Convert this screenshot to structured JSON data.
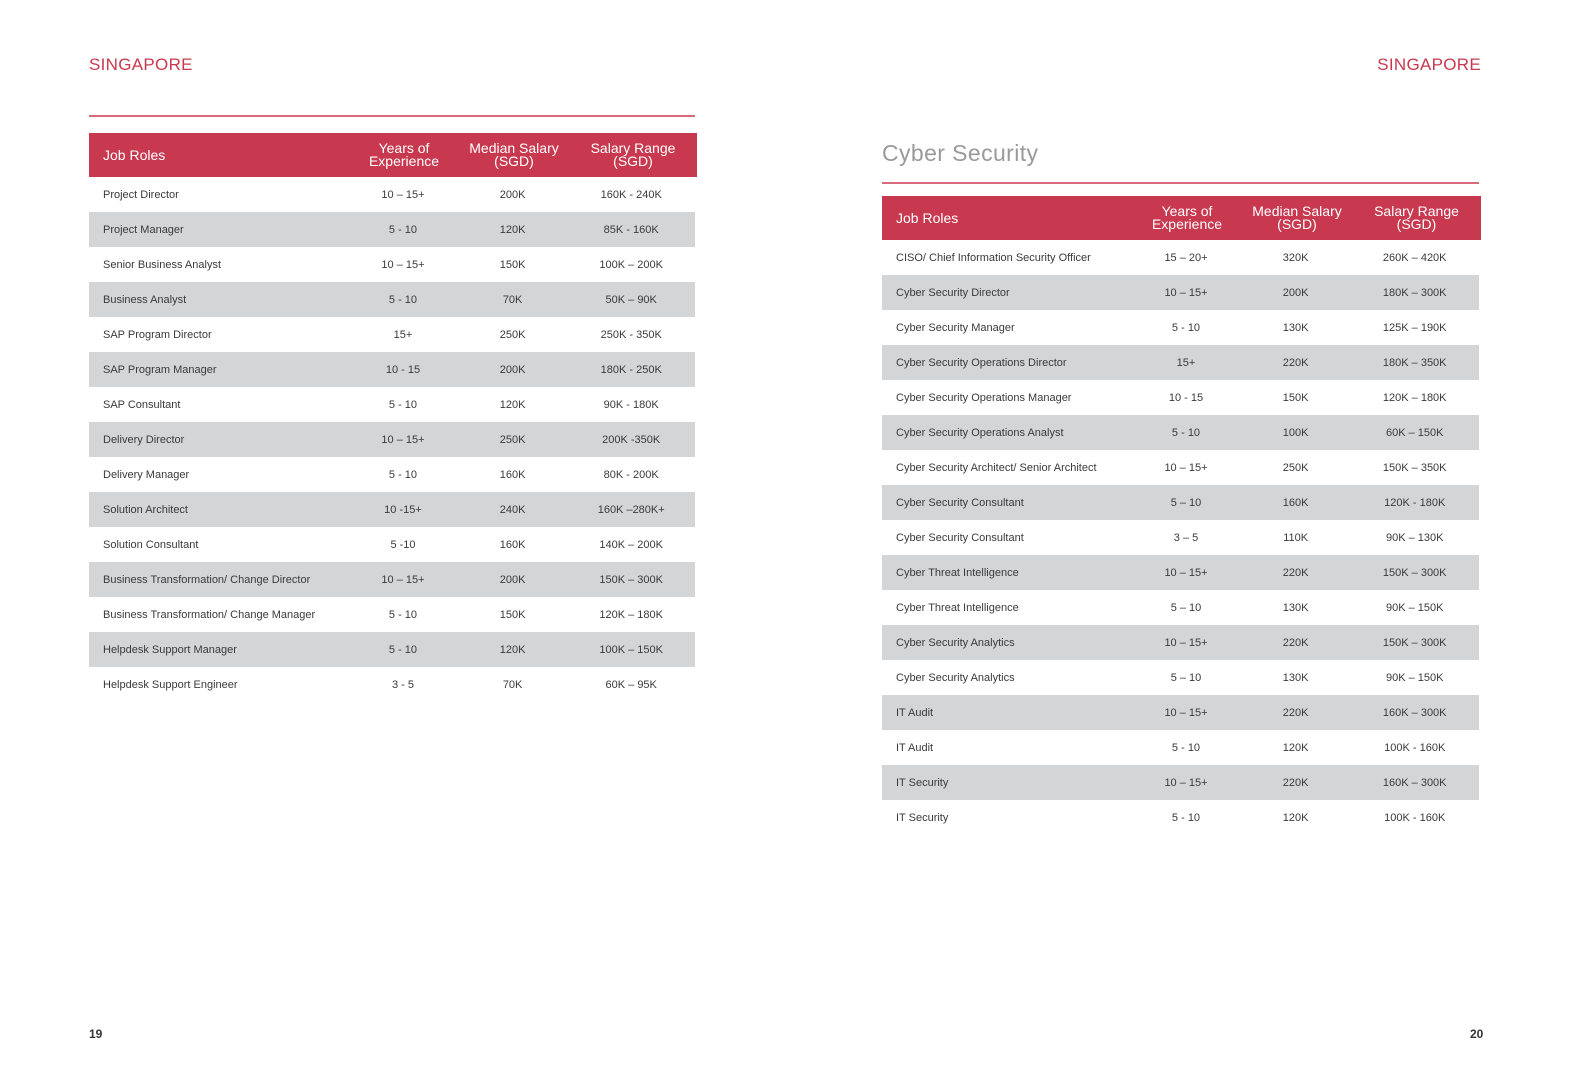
{
  "left_page": {
    "region": "SINGAPORE",
    "page_number": "19",
    "headers": {
      "role": "Job Roles",
      "experience": [
        "Years of",
        "Experience"
      ],
      "median": [
        "Median Salary",
        "(SGD)"
      ],
      "range": [
        "Salary Range",
        "(SGD)"
      ]
    },
    "rows": [
      {
        "role": "Project Director",
        "experience": "10 – 15+",
        "median": "200K",
        "range": "160K - 240K"
      },
      {
        "role": "Project Manager",
        "experience": "5 - 10",
        "median": "120K",
        "range": "85K - 160K"
      },
      {
        "role": "Senior Business Analyst",
        "experience": "10 – 15+",
        "median": "150K",
        "range": "100K – 200K"
      },
      {
        "role": "Business Analyst",
        "experience": "5 - 10",
        "median": "70K",
        "range": "50K – 90K"
      },
      {
        "role": "SAP Program Director",
        "experience": "15+",
        "median": "250K",
        "range": "250K - 350K"
      },
      {
        "role": "SAP Program Manager",
        "experience": "10 - 15",
        "median": "200K",
        "range": "180K - 250K"
      },
      {
        "role": "SAP Consultant",
        "experience": "5 - 10",
        "median": "120K",
        "range": "90K - 180K"
      },
      {
        "role": "Delivery Director",
        "experience": "10 – 15+",
        "median": "250K",
        "range": "200K -350K"
      },
      {
        "role": "Delivery Manager",
        "experience": "5 - 10",
        "median": "160K",
        "range": "80K - 200K"
      },
      {
        "role": "Solution Architect",
        "experience": "10 -15+",
        "median": "240K",
        "range": "160K –280K+"
      },
      {
        "role": "Solution Consultant",
        "experience": "5 -10",
        "median": "160K",
        "range": "140K – 200K"
      },
      {
        "role": "Business Transformation/ Change Director",
        "experience": "10 – 15+",
        "median": "200K",
        "range": "150K – 300K"
      },
      {
        "role": "Business Transformation/ Change Manager",
        "experience": "5 - 10",
        "median": "150K",
        "range": "120K – 180K"
      },
      {
        "role": "Helpdesk Support Manager",
        "experience": "5 - 10",
        "median": "120K",
        "range": "100K – 150K"
      },
      {
        "role": "Helpdesk Support Engineer",
        "experience": "3 - 5",
        "median": "70K",
        "range": "60K – 95K"
      }
    ]
  },
  "right_page": {
    "region": "SINGAPORE",
    "page_number": "20",
    "section_title": "Cyber Security",
    "headers": {
      "role": "Job Roles",
      "experience": [
        "Years of",
        "Experience"
      ],
      "median": [
        "Median Salary",
        "(SGD)"
      ],
      "range": [
        "Salary Range",
        "(SGD)"
      ]
    },
    "rows": [
      {
        "role": "CISO/ Chief Information Security Officer",
        "experience": "15 – 20+",
        "median": "320K",
        "range": "260K – 420K"
      },
      {
        "role": "Cyber Security Director",
        "experience": "10 – 15+",
        "median": "200K",
        "range": "180K – 300K"
      },
      {
        "role": "Cyber Security Manager",
        "experience": "5 - 10",
        "median": "130K",
        "range": "125K – 190K"
      },
      {
        "role": "Cyber Security Operations Director",
        "experience": "15+",
        "median": "220K",
        "range": "180K – 350K"
      },
      {
        "role": "Cyber Security Operations Manager",
        "experience": "10 - 15",
        "median": "150K",
        "range": "120K – 180K"
      },
      {
        "role": "Cyber Security Operations Analyst",
        "experience": "5 - 10",
        "median": "100K",
        "range": "60K – 150K"
      },
      {
        "role": "Cyber Security Architect/ Senior Architect",
        "experience": "10 – 15+",
        "median": "250K",
        "range": "150K – 350K"
      },
      {
        "role": "Cyber Security Consultant",
        "experience": "5 – 10",
        "median": "160K",
        "range": "120K - 180K"
      },
      {
        "role": "Cyber Security Consultant",
        "experience": "3 – 5",
        "median": "110K",
        "range": "90K – 130K"
      },
      {
        "role": "Cyber Threat Intelligence",
        "experience": "10 – 15+",
        "median": "220K",
        "range": "150K – 300K"
      },
      {
        "role": "Cyber Threat Intelligence",
        "experience": "5 – 10",
        "median": "130K",
        "range": "90K – 150K"
      },
      {
        "role": "Cyber Security Analytics",
        "experience": "10 – 15+",
        "median": "220K",
        "range": "150K – 300K"
      },
      {
        "role": "Cyber Security Analytics",
        "experience": "5 – 10",
        "median": "130K",
        "range": "90K – 150K"
      },
      {
        "role": "IT Audit",
        "experience": "10 – 15+",
        "median": "220K",
        "range": "160K – 300K"
      },
      {
        "role": "IT Audit",
        "experience": "5 - 10",
        "median": "120K",
        "range": "100K - 160K"
      },
      {
        "role": "IT Security",
        "experience": "10 – 15+",
        "median": "220K",
        "range": "160K – 300K"
      },
      {
        "role": "IT Security",
        "experience": "5 - 10",
        "median": "120K",
        "range": "100K - 160K"
      }
    ]
  }
}
